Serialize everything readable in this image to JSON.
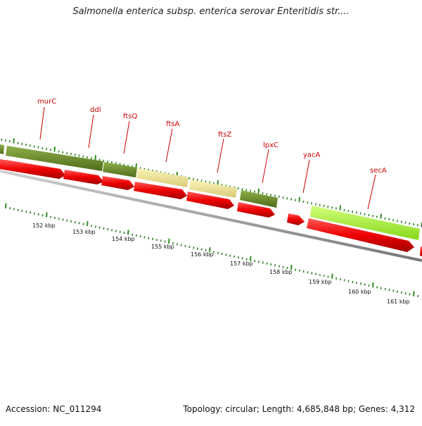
{
  "title": "Salmonella enterica subsp. enterica serovar Enteritidis str....",
  "footer": {
    "accession": "Accession: NC_011294",
    "stats": "Topology: circular; Length: 4,685,848 bp; Genes: 4,312"
  },
  "genes": [
    {
      "name": "murC",
      "label": "murC",
      "color": "#6b8e23"
    },
    {
      "name": "ddl",
      "label": "ddl",
      "color": "#6b8e23"
    },
    {
      "name": "ftsQ",
      "label": "ftsQ",
      "color": "#6b8e23"
    },
    {
      "name": "ftsA",
      "label": "ftsA",
      "color": "#f0e68c"
    },
    {
      "name": "ftsZ",
      "label": "ftsZ",
      "color": "#f0e68c"
    },
    {
      "name": "lpxC",
      "label": "lpxC",
      "color": "#6b8e23"
    },
    {
      "name": "yacA",
      "label": "yacA",
      "color": "#ff0000"
    },
    {
      "name": "secA",
      "label": "secA",
      "color": "#adff2f"
    }
  ],
  "kbp_labels": [
    "152 kbp",
    "153 kbp",
    "154 kbp",
    "155 kbp",
    "156 kbp",
    "157 kbp",
    "158 kbp",
    "159 kbp",
    "160 kbp",
    "161 kbp"
  ],
  "colors": {
    "cds": "#ff0000",
    "label_line": "#cc0000",
    "tick": "#2e8b22",
    "backbone": "#999999"
  }
}
